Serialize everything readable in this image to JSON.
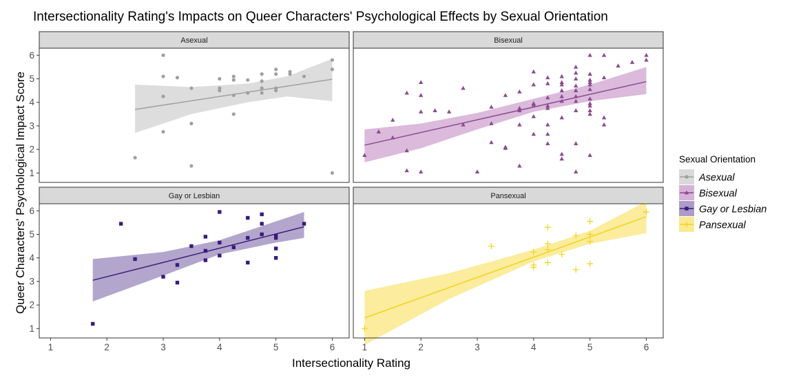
{
  "chart_data": {
    "type": "scatter",
    "title": "Intersectionality Rating's Impacts on Queer Characters' Psychological Effects by Sexual Orientation",
    "xlabel": "Intersectionality Rating",
    "ylabel": "Queer Characters' Psychological Impact Score",
    "xlim": [
      0.8,
      6.3
    ],
    "ylim": [
      0.6,
      6.3
    ],
    "x_ticks": [
      "1",
      "2",
      "3",
      "4",
      "5",
      "6"
    ],
    "y_ticks": [
      "1",
      "2",
      "3",
      "4",
      "5",
      "6"
    ],
    "grid": false,
    "legend": {
      "title": "Sexual Orientation",
      "placement": "right",
      "entries": [
        "Asexual",
        "Bisexual",
        "Gay or Lesbian",
        "Pansexual"
      ]
    },
    "series": [
      {
        "name": "Asexual",
        "panel": "Asexual",
        "color": "#a0a0a0",
        "band_color": "#d9d9d9",
        "marker": "circle",
        "points": [
          [
            2.5,
            1.65
          ],
          [
            3,
            6.0
          ],
          [
            3,
            5.1
          ],
          [
            3,
            4.25
          ],
          [
            3,
            2.75
          ],
          [
            3.25,
            5.05
          ],
          [
            3.5,
            4.6
          ],
          [
            3.5,
            3.1
          ],
          [
            3.5,
            1.3
          ],
          [
            4,
            5.0
          ],
          [
            4,
            4.6
          ],
          [
            4,
            4.5
          ],
          [
            4.25,
            5.1
          ],
          [
            4.25,
            4.95
          ],
          [
            4.25,
            4.3
          ],
          [
            4.25,
            3.5
          ],
          [
            4.5,
            4.95
          ],
          [
            4.5,
            4.4
          ],
          [
            4.75,
            5.2
          ],
          [
            4.75,
            4.9
          ],
          [
            4.75,
            4.6
          ],
          [
            4.75,
            4.4
          ],
          [
            5,
            5.4
          ],
          [
            5,
            5.2
          ],
          [
            5,
            4.6
          ],
          [
            5,
            4.5
          ],
          [
            5.25,
            5.3
          ],
          [
            5.25,
            5.2
          ],
          [
            5.5,
            5.1
          ],
          [
            6,
            5.8
          ],
          [
            6,
            5.4
          ],
          [
            6,
            1.0
          ]
        ],
        "fit": {
          "x": [
            2.5,
            6
          ],
          "y": [
            3.7,
            4.98
          ]
        },
        "ci": {
          "x": [
            2.5,
            3.5,
            4.5,
            5.2,
            6
          ],
          "lower": [
            2.7,
            3.5,
            4.0,
            4.25,
            4.05
          ],
          "upper": [
            4.75,
            4.65,
            4.8,
            5.1,
            5.85
          ]
        }
      },
      {
        "name": "Bisexual",
        "panel": "Bisexual",
        "color": "#8b4b8f",
        "band_color": "#d7b2d8",
        "marker": "triangle",
        "points": [
          [
            1,
            1.75
          ],
          [
            1.25,
            2.75
          ],
          [
            1.5,
            3.25
          ],
          [
            1.5,
            2.5
          ],
          [
            1.75,
            4.4
          ],
          [
            1.75,
            1.95
          ],
          [
            1.75,
            1.1
          ],
          [
            2,
            4.85
          ],
          [
            2,
            4.3
          ],
          [
            2,
            3.6
          ],
          [
            2,
            1.05
          ],
          [
            2.25,
            3.65
          ],
          [
            2.5,
            3.6
          ],
          [
            2.75,
            4.6
          ],
          [
            2.75,
            3.05
          ],
          [
            3,
            1.05
          ],
          [
            3.25,
            3.1
          ],
          [
            3.25,
            2.3
          ],
          [
            3.25,
            3.8
          ],
          [
            3.5,
            4.3
          ],
          [
            3.5,
            2.1
          ],
          [
            3.5,
            2.05
          ],
          [
            3.75,
            4.45
          ],
          [
            3.75,
            3.75
          ],
          [
            3.75,
            3.65
          ],
          [
            3.75,
            3.05
          ],
          [
            3.75,
            1.3
          ],
          [
            4,
            5.3
          ],
          [
            4,
            4.75
          ],
          [
            4,
            3.95
          ],
          [
            4,
            3.9
          ],
          [
            4,
            3.4
          ],
          [
            4,
            2.65
          ],
          [
            4.25,
            5.05
          ],
          [
            4.25,
            4.8
          ],
          [
            4.25,
            4.2
          ],
          [
            4.25,
            3.85
          ],
          [
            4.25,
            3.75
          ],
          [
            4.25,
            3.05
          ],
          [
            4.25,
            2.65
          ],
          [
            4.25,
            2.25
          ],
          [
            4.5,
            5.1
          ],
          [
            4.5,
            4.85
          ],
          [
            4.5,
            4.75
          ],
          [
            4.5,
            4.5
          ],
          [
            4.5,
            4.25
          ],
          [
            4.5,
            4.05
          ],
          [
            4.5,
            3.35
          ],
          [
            4.5,
            1.8
          ],
          [
            4.5,
            1.6
          ],
          [
            4.75,
            5.5
          ],
          [
            4.75,
            5.25
          ],
          [
            4.75,
            5.0
          ],
          [
            4.75,
            4.7
          ],
          [
            4.75,
            4.5
          ],
          [
            4.75,
            4.25
          ],
          [
            4.75,
            4.05
          ],
          [
            4.75,
            3.65
          ],
          [
            4.75,
            2.25
          ],
          [
            4.75,
            1.05
          ],
          [
            5,
            6.0
          ],
          [
            5,
            5.2
          ],
          [
            5,
            4.95
          ],
          [
            5,
            4.85
          ],
          [
            5,
            4.75
          ],
          [
            5,
            4.55
          ],
          [
            5,
            4.15
          ],
          [
            5,
            3.95
          ],
          [
            5,
            3.85
          ],
          [
            5,
            3.65
          ],
          [
            5,
            3.5
          ],
          [
            5,
            1.75
          ],
          [
            5.25,
            6.0
          ],
          [
            5.25,
            5.05
          ],
          [
            5.25,
            3.35
          ],
          [
            5.25,
            3.05
          ],
          [
            5.5,
            5.55
          ],
          [
            5.75,
            5.7
          ],
          [
            6,
            6.0
          ],
          [
            6,
            5.8
          ]
        ],
        "fit": {
          "x": [
            1,
            6
          ],
          "y": [
            2.18,
            4.88
          ]
        },
        "ci": {
          "x": [
            1,
            2,
            3,
            4,
            5,
            6
          ],
          "lower": [
            1.45,
            2.05,
            2.85,
            3.6,
            4.05,
            4.35
          ],
          "upper": [
            2.85,
            3.1,
            3.55,
            4.15,
            4.75,
            5.5
          ]
        }
      },
      {
        "name": "Gay or Lesbian",
        "panel": "Gay or Lesbian",
        "color": "#3c1a7a",
        "band_color": "#ab9cc8",
        "marker": "square",
        "points": [
          [
            1.75,
            1.2
          ],
          [
            2.25,
            5.45
          ],
          [
            2.5,
            3.95
          ],
          [
            3,
            3.2
          ],
          [
            3.25,
            3.7
          ],
          [
            3.25,
            2.95
          ],
          [
            3.5,
            4.5
          ],
          [
            3.75,
            4.9
          ],
          [
            3.75,
            4.3
          ],
          [
            3.75,
            3.9
          ],
          [
            4,
            5.95
          ],
          [
            4,
            4.65
          ],
          [
            4,
            4.1
          ],
          [
            4.25,
            4.45
          ],
          [
            4.5,
            5.7
          ],
          [
            4.5,
            4.85
          ],
          [
            4.5,
            3.8
          ],
          [
            4.75,
            5.85
          ],
          [
            4.75,
            5.45
          ],
          [
            4.75,
            5.0
          ],
          [
            5,
            4.95
          ],
          [
            5,
            4.85
          ],
          [
            5,
            4.4
          ],
          [
            5,
            4.0
          ],
          [
            5.5,
            5.45
          ]
        ],
        "fit": {
          "x": [
            1.75,
            5.5
          ],
          "y": [
            3.05,
            5.32
          ]
        },
        "ci": {
          "x": [
            1.75,
            3,
            4,
            5,
            5.5
          ],
          "lower": [
            2.15,
            3.25,
            4.15,
            4.65,
            4.85
          ],
          "upper": [
            3.95,
            4.25,
            4.75,
            5.55,
            5.95
          ]
        }
      },
      {
        "name": "Pansexual",
        "panel": "Pansexual",
        "color": "#f2d318",
        "band_color": "#fbea93",
        "marker": "plus",
        "points": [
          [
            1,
            1.0
          ],
          [
            3.25,
            4.5
          ],
          [
            4,
            4.25
          ],
          [
            4,
            3.7
          ],
          [
            4,
            3.6
          ],
          [
            4.25,
            5.3
          ],
          [
            4.25,
            4.6
          ],
          [
            4.25,
            4.35
          ],
          [
            4.25,
            3.8
          ],
          [
            4.5,
            4.15
          ],
          [
            4.75,
            4.95
          ],
          [
            4.75,
            3.5
          ],
          [
            5,
            5.55
          ],
          [
            5,
            5.0
          ],
          [
            5,
            4.7
          ],
          [
            5,
            3.75
          ],
          [
            6,
            5.95
          ]
        ],
        "fit": {
          "x": [
            1,
            6
          ],
          "y": [
            1.45,
            5.75
          ]
        },
        "ci": {
          "x": [
            1,
            2.5,
            4,
            5,
            6
          ],
          "lower": [
            0.3,
            2.25,
            3.85,
            4.6,
            5.05
          ],
          "upper": [
            2.6,
            3.35,
            4.35,
            5.15,
            6.4
          ]
        }
      }
    ]
  }
}
